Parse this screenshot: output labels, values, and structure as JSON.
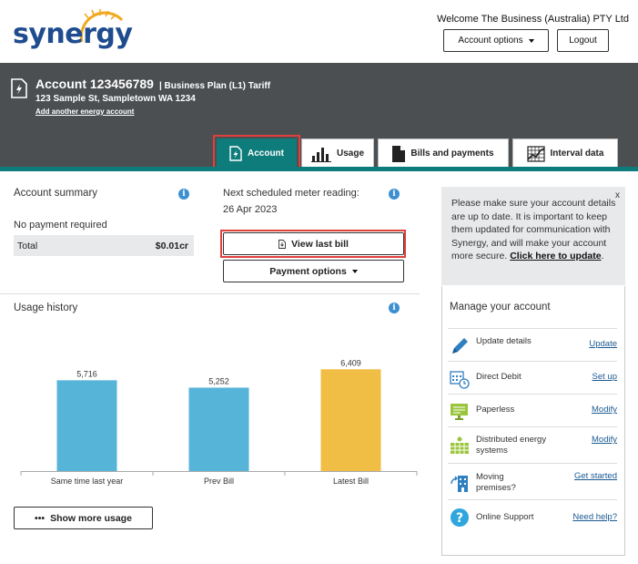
{
  "header": {
    "brand": "synergy",
    "welcome": "Welcome The Business (Australia) PTY Ltd",
    "account_options_label": "Account options",
    "logout_label": "Logout"
  },
  "account": {
    "title": "Account 123456789",
    "plan": "| Business Plan (L1) Tariff",
    "address": "123 Sample St, Sampletown WA 1234",
    "add_link": "Add another energy account"
  },
  "tabs": [
    {
      "label": "Account",
      "icon": "bolt-document-icon",
      "active": true
    },
    {
      "label": "Usage",
      "icon": "bar-chart-icon",
      "active": false
    },
    {
      "label": "Bills and payments",
      "icon": "document-icon",
      "active": false
    },
    {
      "label": "Interval data",
      "icon": "grid-chart-icon",
      "active": false
    }
  ],
  "summary": {
    "title": "Account summary",
    "status": "No payment required",
    "total_label": "Total",
    "total_value": "$0.01cr"
  },
  "meter": {
    "label": "Next scheduled meter reading:",
    "date": "26 Apr 2023"
  },
  "buttons": {
    "view_last_bill": "View last bill",
    "payment_options": "Payment options",
    "show_more_usage": "Show more usage"
  },
  "usage": {
    "title": "Usage history"
  },
  "chart_data": {
    "type": "bar",
    "categories": [
      "Same time last year",
      "Prev Bill",
      "Latest Bill"
    ],
    "values": [
      5716,
      5252,
      6409
    ],
    "value_labels": [
      "5,716",
      "5,252",
      "6,409"
    ],
    "colors": [
      "#56b4d8",
      "#56b4d8",
      "#f0bd45"
    ],
    "ylim": [
      0,
      7000
    ],
    "grid": false
  },
  "notice": {
    "text": "Please make sure your account details are up to date. It is important to keep them updated for communication with Synergy, and will make your account more secure.",
    "link": "Click here to update",
    "close": "x"
  },
  "manage": {
    "title": "Manage your account",
    "items": [
      {
        "label": "Update details",
        "link": "Update",
        "icon": "pencil-icon"
      },
      {
        "label": "Direct Debit",
        "link": "Set up",
        "icon": "calendar-clock-icon"
      },
      {
        "label": "Paperless",
        "link": "Modify",
        "icon": "monitor-icon"
      },
      {
        "label": "Distributed energy systems",
        "link": "Modify",
        "icon": "solar-panel-icon"
      },
      {
        "label": "Moving premises?",
        "link": "Get started",
        "icon": "moving-building-icon"
      },
      {
        "label": "Online Support",
        "link": "Need help?",
        "icon": "help-icon"
      }
    ]
  },
  "colors": {
    "brand_blue": "#1f4c8f",
    "teal": "#0e7c7b",
    "band_grey": "#4b4f52",
    "bar_blue": "#56b4d8",
    "bar_gold": "#f0bd45",
    "highlight_red": "#e0403c"
  }
}
